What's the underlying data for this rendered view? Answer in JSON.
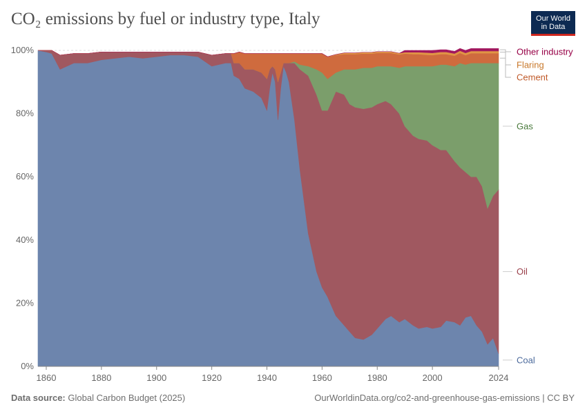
{
  "title": "CO₂ emissions by fuel or industry type, Italy",
  "logo": {
    "line1": "Our World",
    "line2": "in Data"
  },
  "footer": {
    "source_label": "Data source:",
    "source_value": "Global Carbon Budget (2025)",
    "url_license": "OurWorldinData.org/co2-and-greenhouse-gas-emissions | CC BY"
  },
  "chart_data": {
    "type": "area",
    "stacked": true,
    "normalized_percent": true,
    "title": "CO₂ emissions by fuel or industry type, Italy",
    "xlabel": "",
    "ylabel": "",
    "xlim": [
      1857,
      2024
    ],
    "ylim": [
      0,
      100
    ],
    "x_ticks": [
      1860,
      1880,
      1900,
      1920,
      1940,
      1960,
      1980,
      2000,
      2024
    ],
    "y_ticks": [
      0,
      20,
      40,
      60,
      80,
      100
    ],
    "y_tick_labels": [
      "0%",
      "20%",
      "40%",
      "60%",
      "80%",
      "100%"
    ],
    "grid": "horizontal",
    "legend_position": "right",
    "x": [
      1857,
      1860,
      1862,
      1865,
      1870,
      1875,
      1880,
      1885,
      1890,
      1895,
      1900,
      1905,
      1910,
      1915,
      1920,
      1925,
      1927,
      1928,
      1930,
      1932,
      1935,
      1938,
      1940,
      1941,
      1942,
      1943,
      1944,
      1945,
      1946,
      1947,
      1948,
      1950,
      1952,
      1955,
      1958,
      1960,
      1962,
      1965,
      1968,
      1970,
      1972,
      1975,
      1978,
      1980,
      1983,
      1985,
      1988,
      1990,
      1993,
      1995,
      1998,
      2000,
      2003,
      2005,
      2008,
      2010,
      2012,
      2014,
      2016,
      2018,
      2020,
      2022,
      2024
    ],
    "series": [
      {
        "name": "Coal",
        "color": "#6d85ad",
        "values": [
          100,
          99.5,
          99,
          94,
          96,
          96,
          97,
          97.5,
          98,
          97.5,
          98,
          98.5,
          98.5,
          98,
          95,
          96,
          96,
          92,
          91,
          88,
          87,
          85,
          81,
          88,
          93,
          90,
          78,
          88,
          95,
          93,
          90,
          78,
          62,
          42,
          30,
          25,
          22,
          16,
          13,
          11,
          9,
          8.5,
          10,
          12,
          15,
          16,
          14,
          15,
          13,
          12,
          12.5,
          12,
          12.5,
          14.5,
          14,
          13,
          15.5,
          16,
          13,
          11,
          7,
          9,
          4
        ]
      },
      {
        "name": "Oil",
        "color": "#a05860",
        "values": [
          0,
          0.5,
          1,
          4.5,
          3,
          3,
          2.5,
          2,
          1.5,
          2,
          1.5,
          1,
          1,
          1.5,
          3.5,
          3,
          3,
          4,
          5,
          6,
          7,
          8,
          10,
          6,
          2,
          4,
          12,
          5,
          1,
          3,
          6,
          18,
          32,
          50,
          56,
          56,
          59,
          71,
          73,
          72,
          73,
          73,
          72,
          71,
          69,
          67,
          66,
          61,
          60,
          60,
          59,
          58,
          56,
          54,
          51,
          50,
          46,
          44,
          47,
          46,
          43,
          45,
          52
        ]
      },
      {
        "name": "Gas",
        "color": "#7b9e6b",
        "values": [
          0,
          0,
          0,
          0,
          0,
          0,
          0,
          0,
          0,
          0,
          0,
          0,
          0,
          0,
          0,
          0,
          0,
          0,
          0,
          0,
          0,
          0,
          0,
          0,
          0,
          0,
          0,
          0,
          0,
          0,
          0,
          0.5,
          1.5,
          3,
          8,
          12,
          10,
          6,
          8,
          11,
          12,
          13,
          12.5,
          12,
          11,
          12,
          14.5,
          19,
          22,
          23,
          23.5,
          25,
          27,
          27,
          30,
          33,
          34,
          36,
          36,
          39,
          46,
          42,
          40
        ]
      },
      {
        "name": "Cement",
        "color": "#cf6b3e",
        "values": [
          0,
          0,
          0,
          0,
          0,
          0,
          0,
          0,
          0,
          0,
          0,
          0,
          0,
          0,
          0,
          0,
          0,
          3,
          3.5,
          5,
          5,
          6,
          8,
          5,
          4,
          5,
          9,
          6,
          3,
          3,
          3,
          2.5,
          3.5,
          4,
          5,
          6,
          7,
          5.5,
          4.8,
          4.8,
          4.8,
          4.5,
          4.5,
          4.2,
          4.2,
          4.2,
          4.2,
          4,
          3.8,
          3.8,
          3.6,
          3.5,
          3.3,
          3.3,
          3.3,
          3.2,
          3.0,
          3.1,
          3.1,
          3.1,
          3.1,
          3.1,
          3.1
        ]
      },
      {
        "name": "Flaring",
        "color": "#e09545",
        "values": [
          0,
          0,
          0,
          0,
          0,
          0,
          0,
          0,
          0,
          0,
          0,
          0,
          0,
          0,
          0,
          0,
          0,
          0,
          0,
          0,
          0,
          0,
          0,
          0,
          0,
          0,
          0,
          0,
          0,
          0,
          0,
          0,
          0,
          0,
          0,
          0,
          0,
          0.2,
          0.4,
          0.4,
          0.4,
          0.4,
          0.4,
          0.4,
          0.4,
          0.4,
          0.4,
          0.4,
          0.6,
          0.6,
          0.7,
          0.7,
          0.7,
          0.7,
          0.7,
          0.7,
          0.7,
          0.7,
          0.7,
          0.7,
          0.7,
          0.7,
          0.7
        ]
      },
      {
        "name": "Other industry",
        "color": "#a2185f",
        "values": [
          0,
          0,
          0,
          0,
          0,
          0,
          0,
          0,
          0,
          0,
          0,
          0,
          0,
          0,
          0,
          0,
          0,
          0,
          0,
          0,
          0,
          0,
          0,
          0,
          0,
          0,
          0,
          0,
          0,
          0,
          0,
          0,
          0,
          0,
          0,
          0,
          0,
          0,
          0,
          0,
          0,
          0,
          0,
          0,
          0,
          0,
          0,
          0.6,
          0.6,
          0.6,
          0.7,
          0.8,
          0.7,
          0.7,
          0.7,
          0.7,
          0.8,
          0.8,
          0.8,
          0.8,
          0.8,
          0.8,
          0.8
        ]
      }
    ],
    "legend_label_colors": {
      "Coal": "#4c6a9c",
      "Oil": "#9a3f4a",
      "Gas": "#4a7a3c",
      "Cement": "#c05a2a",
      "Flaring": "#c8782a",
      "Other industry": "#970046"
    }
  }
}
